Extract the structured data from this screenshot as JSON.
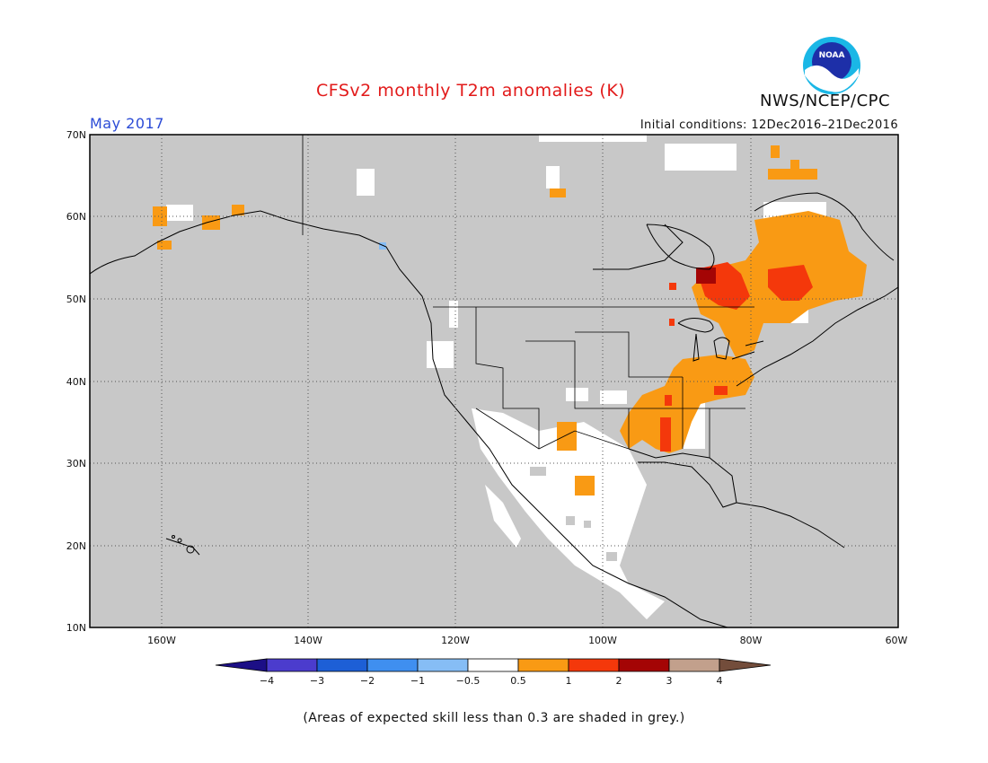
{
  "header": {
    "title": "CFSv2 monthly T2m anomalies (K)",
    "agency": "NWS/NCEP/CPC",
    "logo_text": "NOAA",
    "period": "May 2017",
    "initial_conditions": "Initial conditions: 12Dec2016–21Dec2016"
  },
  "map": {
    "projection": "lat-lon",
    "lon_range": [
      -172,
      -60
    ],
    "lat_range": [
      10,
      70
    ],
    "lat_labels": [
      "10N",
      "20N",
      "30N",
      "40N",
      "50N",
      "60N",
      "70N"
    ],
    "lon_labels": [
      "160W",
      "140W",
      "120W",
      "100W",
      "80W",
      "60W"
    ],
    "background_color": "#c8c8c8",
    "grid": "dotted"
  },
  "legend": {
    "tick_labels": [
      "−4",
      "−3",
      "−2",
      "−1",
      "−0.5",
      "0.5",
      "1",
      "2",
      "3",
      "4"
    ],
    "colors": [
      "#1c0f86",
      "#4b3ccd",
      "#1d5fd6",
      "#3f8ff0",
      "#86bdf5",
      "#ffffff",
      "#f99a14",
      "#f4380b",
      "#a40505",
      "#c2a08c",
      "#734d3b"
    ]
  },
  "footer": {
    "note": "(Areas of expected skill less than 0.3 are shaded in grey.)"
  },
  "anomaly_regions": [
    {
      "name": "Great Lakes / Ontario",
      "lon": -85,
      "lat": 52,
      "category": "2"
    },
    {
      "name": "Quebec / Labrador",
      "lon": -72,
      "lat": 55,
      "category": "1"
    },
    {
      "name": "Ohio Valley",
      "lon": -88,
      "lat": 39,
      "category": "1"
    },
    {
      "name": "Lower Mississippi",
      "lon": -93,
      "lat": 34,
      "category": "1"
    },
    {
      "name": "Southwest US / Mexico",
      "lon": -108,
      "lat": 30,
      "category": "-0.5 to 0.5"
    },
    {
      "name": "Alaska",
      "lon": -155,
      "lat": 60,
      "category": "1"
    }
  ]
}
